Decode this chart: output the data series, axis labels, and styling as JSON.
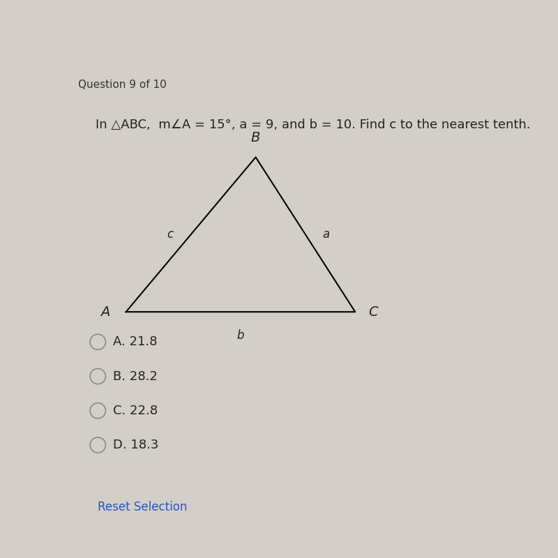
{
  "background_color": "#d4cec9",
  "question_header": "Question 9 of 10",
  "problem_text": "In △ABC,  m∠A = 15°, a = 9, and b = 10. Find c to the nearest tenth.",
  "triangle": {
    "A": [
      0.13,
      0.43
    ],
    "B": [
      0.43,
      0.79
    ],
    "C": [
      0.66,
      0.43
    ],
    "label_A": "A",
    "label_B": "B",
    "label_C": "C",
    "label_a": "a",
    "label_b": "b",
    "label_c": "c",
    "line_color": "#000000",
    "line_width": 1.5
  },
  "choices": [
    {
      "letter": "A",
      "value": "21.8"
    },
    {
      "letter": "B",
      "value": "28.2"
    },
    {
      "letter": "C",
      "value": "22.8"
    },
    {
      "letter": "D",
      "value": "18.3"
    }
  ],
  "reset_text": "Reset Selection",
  "reset_color": "#2255cc",
  "header_color": "#333333",
  "text_color": "#222222",
  "choice_circle_color": "#888888"
}
